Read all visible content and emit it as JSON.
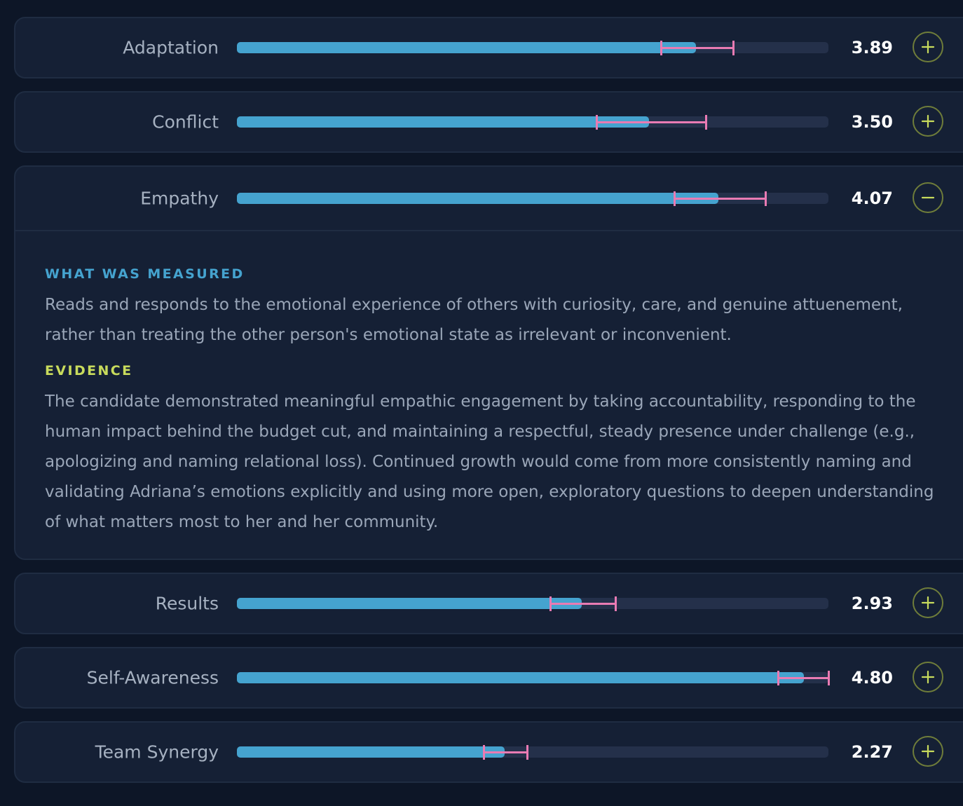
{
  "colors": {
    "bar_fill": "#45a3cf",
    "bar_track": "#24304a",
    "confidence_interval": "#e97bb3",
    "toggle_accent": "#c8db5c"
  },
  "competencies": [
    {
      "name": "Adaptation",
      "score": "3.89",
      "fill_pct": 77.6,
      "ci_low_pct": 71.7,
      "ci_high_pct": 83.9,
      "expanded": false,
      "toggle_icon": "plus-icon"
    },
    {
      "name": "Conflict",
      "score": "3.50",
      "fill_pct": 69.7,
      "ci_low_pct": 60.8,
      "ci_high_pct": 79.3,
      "expanded": false,
      "toggle_icon": "plus-icon"
    },
    {
      "name": "Empathy",
      "score": "4.07",
      "fill_pct": 81.4,
      "ci_low_pct": 73.9,
      "ci_high_pct": 89.3,
      "expanded": true,
      "toggle_icon": "minus-icon",
      "details": {
        "measured_heading": "WHAT WAS MEASURED",
        "measured_text": "Reads and responds to the emotional experience of others with curiosity, care, and genuine attuenement, rather than treating the other person's emotional state as irrelevant or inconvenient.",
        "evidence_heading": "EVIDENCE",
        "evidence_text": "The candidate demonstrated meaningful empathic engagement by taking accountability, responding to the human impact behind the budget cut, and maintaining a respectful, steady presence under challenge (e.g., apologizing and naming relational loss). Continued growth would come from more consistently naming and validating Adriana’s emotions explicitly and using more open, exploratory questions to deepen understanding of what matters most to her and her community."
      }
    },
    {
      "name": "Results",
      "score": "2.93",
      "fill_pct": 58.3,
      "ci_low_pct": 53.0,
      "ci_high_pct": 64.0,
      "expanded": false,
      "toggle_icon": "plus-icon"
    },
    {
      "name": "Self-Awareness",
      "score": "4.80",
      "fill_pct": 95.8,
      "ci_low_pct": 91.5,
      "ci_high_pct": 100.0,
      "expanded": false,
      "toggle_icon": "plus-icon"
    },
    {
      "name": "Team Synergy",
      "score": "2.27",
      "fill_pct": 45.3,
      "ci_low_pct": 41.7,
      "ci_high_pct": 49.1,
      "expanded": false,
      "toggle_icon": "plus-icon"
    }
  ]
}
